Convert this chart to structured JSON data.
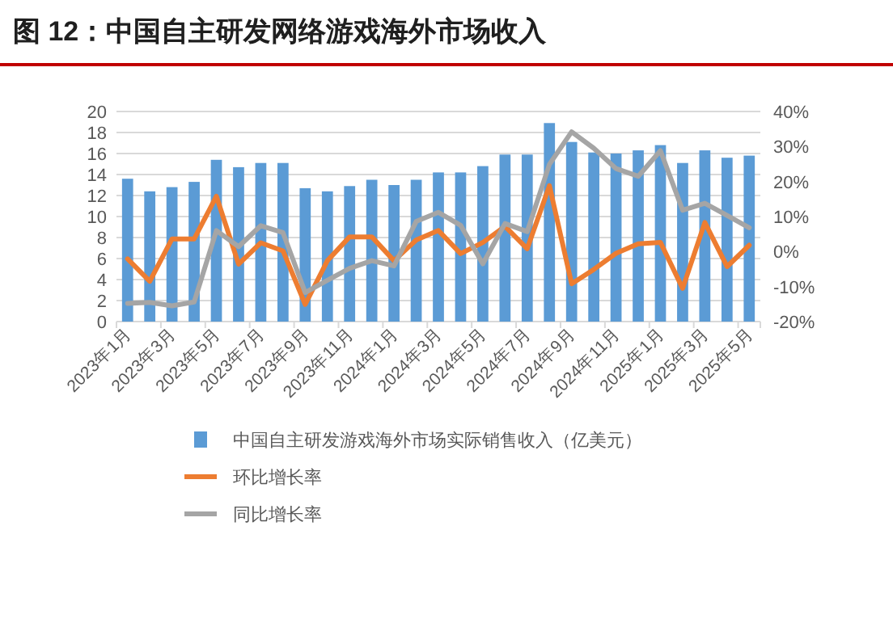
{
  "chart_data": {
    "type": "bar",
    "title": "图 12：中国自主研发网络游戏海外市场收入",
    "categories": [
      "2023年1月",
      null,
      "2023年3月",
      null,
      "2023年5月",
      null,
      "2023年7月",
      null,
      "2023年9月",
      null,
      "2023年11月",
      null,
      "2024年1月",
      null,
      "2024年3月",
      null,
      "2024年5月",
      null,
      "2024年7月",
      null,
      "2024年9月",
      null,
      "2024年11月",
      null,
      "2025年1月",
      null,
      "2025年3月",
      null,
      "2025年5月"
    ],
    "series": [
      {
        "name": "中国自主研发游戏海外市场实际销售收入（亿美元）",
        "color": "#5b9bd5",
        "values": [
          13.6,
          12.4,
          12.8,
          13.3,
          15.4,
          14.7,
          15.1,
          15.1,
          12.7,
          12.4,
          12.9,
          13.5,
          13.0,
          13.5,
          14.2,
          14.2,
          14.8,
          15.9,
          15.9,
          18.9,
          17.1,
          16.1,
          16.0,
          16.3,
          16.8,
          15.1,
          16.3,
          15.6,
          15.8
        ]
      },
      {
        "name": "环比增长率",
        "type": "line",
        "axis": "y2",
        "color": "#ed7d31",
        "values": [
          -2.1,
          -8.5,
          3.6,
          3.6,
          15.8,
          -3.6,
          2.5,
          0.2,
          -15.1,
          -2.6,
          4.2,
          4.2,
          -2.6,
          3.3,
          6.0,
          -0.6,
          2.6,
          7.2,
          0.8,
          18.8,
          -9.2,
          -5.1,
          -0.5,
          2.2,
          2.6,
          -10.5,
          8.3,
          -4.3,
          1.8
        ]
      },
      {
        "name": "同比增长率",
        "type": "line",
        "axis": "y2",
        "color": "#a5a5a5",
        "values": [
          -14.8,
          -14.5,
          -15.5,
          -14.4,
          6.0,
          1.4,
          7.4,
          5.4,
          -11.7,
          -8.2,
          -4.8,
          -2.6,
          -4.1,
          8.6,
          11.2,
          7.5,
          -3.5,
          8.0,
          5.7,
          24.9,
          34.2,
          29.5,
          23.7,
          21.5,
          28.8,
          11.8,
          13.8,
          10.3,
          6.8
        ]
      }
    ],
    "ylim": [
      0,
      20
    ],
    "yticks": [
      0,
      2,
      4,
      6,
      8,
      10,
      12,
      14,
      16,
      18,
      20
    ],
    "y2lim": [
      -20,
      40
    ],
    "y2ticks": [
      {
        "value": -20,
        "label": "-20%"
      },
      {
        "value": -10,
        "label": "-10%"
      },
      {
        "value": 0,
        "label": "0%"
      },
      {
        "value": 10,
        "label": "10%"
      },
      {
        "value": 20,
        "label": "20%"
      },
      {
        "value": 30,
        "label": "30%"
      },
      {
        "value": 40,
        "label": "40%"
      }
    ],
    "grid": "y",
    "legend": "bottom",
    "marker": "none",
    "line_style": "solid"
  }
}
